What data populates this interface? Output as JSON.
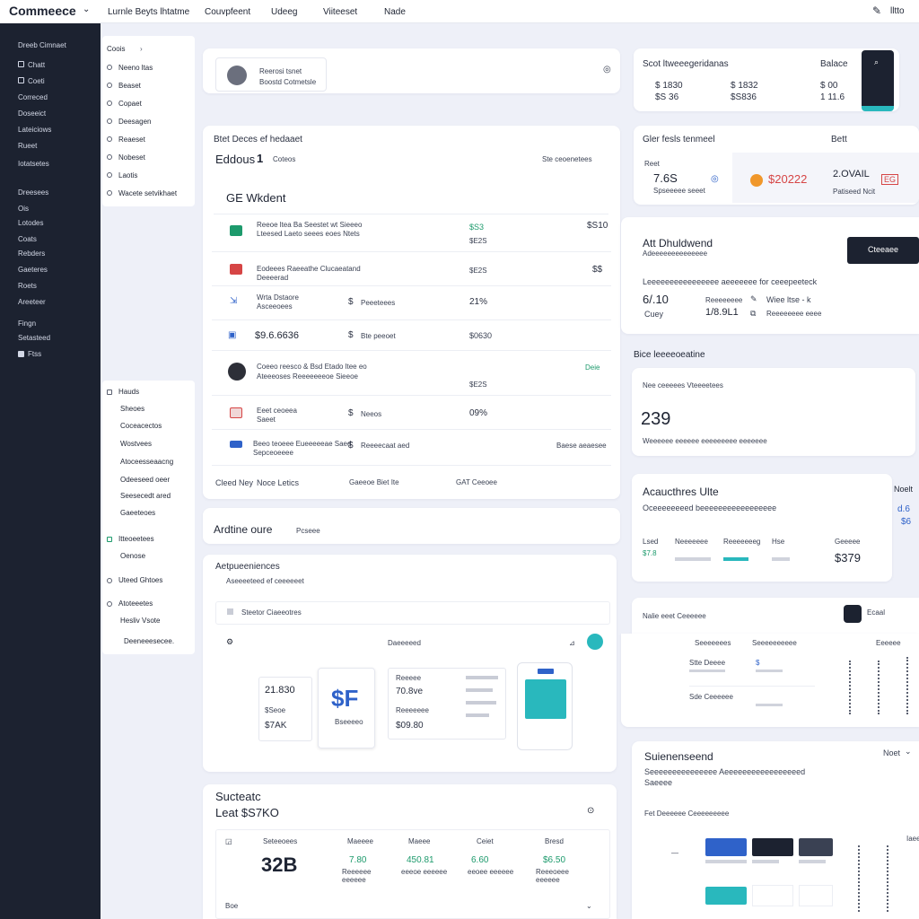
{
  "topbar": {
    "brand": "Commeece",
    "nav": [
      "Lurnle Beyts lhtatme",
      "Couvpfeent",
      "Udeeg",
      "Viiteeset",
      "Nade"
    ],
    "right_label": "lltto"
  },
  "sidebar": {
    "heading": "Dreeb Cimnaet",
    "group1": [
      "Chatt",
      "Coeti",
      "Correced",
      "Doseeict",
      "Lateiciows",
      "Rueet",
      "Iotatsetes"
    ],
    "group2": [
      "Dreesees",
      "Ois",
      "Lotodes",
      "Coats",
      "Rebders",
      "Gaeteres",
      "Roets",
      "Areeteer",
      "Fingn",
      "Setasteed",
      "Ftss"
    ]
  },
  "secondary_nav": {
    "menu1": [
      "Coois",
      "Neeno ltas",
      "Beaset",
      "Copaet",
      "Deesagen",
      "Reaeset",
      "Nobeset",
      "Laotis",
      "Wacete setvikhaet"
    ],
    "menu2_heading": "Hauds",
    "menu2": [
      "Sheoes",
      "Coceacectos",
      "Wostvees",
      "Atoceesseaacng",
      "Odeeseed oeer",
      "Seesecedt ared",
      "Gaeeteoes"
    ],
    "menu3_heading": "Itteoeetees",
    "menu3": [
      "Oenose"
    ],
    "menu4_heading": "Uteed Ghtoes",
    "menu5_heading": "Atoteeetes",
    "menu5": [
      "Hesliv Vsote",
      "Deeneeesecee."
    ]
  },
  "profile_card": {
    "line1": "Reerosi tsnet",
    "line2": "Boostd Cotmetsle"
  },
  "orders_card": {
    "title": "Btet Deces ef hedaaet",
    "subtitle": "Eddous",
    "count": "1",
    "filter": "Coteos",
    "right_filter": "Ste ceoenetees",
    "section": "GE Wkdent",
    "rows": [
      {
        "name": "Reeoe ltea Ba Seestet wt Sieeeo",
        "sub": "Lteesed  Laeto seees eoes  Ntets",
        "mid": "",
        "value": "$S3",
        "value2": "$E2S",
        "right": "$S10"
      },
      {
        "name": "Eodeees Raeeathe Clucaeatand",
        "sub": "Deeeerad",
        "mid": "",
        "value": "",
        "value2": "$E2S",
        "right": "$$"
      },
      {
        "name": "Wrta Dstaore",
        "sub": "Asceeoees",
        "mid": "Peeeteees",
        "value": "21%",
        "value2": "",
        "right": ""
      },
      {
        "name": "$9.6.6636",
        "sub": "",
        "mid": "Bte peeoet",
        "value": "$0630",
        "value2": "",
        "right": ""
      },
      {
        "name": "Coeeo reesco & Bsd Etado ltee eo",
        "sub": "Ateeeoses  Reeeeeeeoe  Sieeoe",
        "mid": "",
        "value": "",
        "value2": "$E2S",
        "right": "Deie"
      },
      {
        "name": "Eeet ceoeea",
        "sub": "Saeet",
        "mid": "Neeos",
        "value": "09%",
        "value2": "",
        "right": ""
      },
      {
        "name": "Beeo teoeee Eueeeeeae Saed",
        "sub": "Sepceoeeee",
        "mid": "Reeeecaat aed",
        "value": "",
        "value2": "",
        "right": "Baese aeaesee"
      }
    ],
    "footer_left": "Cleed Ney",
    "footer_left2": "Noce Letics",
    "footer_mid": "Gaeeoe Biet Ite",
    "footer_right": "GAT Ceeoee"
  },
  "ad_bar": {
    "title": "Ardtine oure",
    "sub": "Pcseee"
  },
  "products_card": {
    "title": "Aetpueeniences",
    "sub": "Aseeeeteed ef ceeeeeet",
    "filter": "Steetor Ciaeeotres",
    "section": "Daeeeeed",
    "tile1_value": "21.830",
    "tile1_label": "$Seoe",
    "tile1_value2": "$7AK",
    "tile2_big": "$F",
    "tile2_label": "Bseeeeo",
    "tile3_value": "70.8ve",
    "tile3_head": "Reeeee",
    "tile3_value2": "$09.80",
    "tile3_label": "Reeeeeee"
  },
  "sales_card": {
    "title": "Sucteatc",
    "subtitle": "Leat $S7KO",
    "columns": [
      "Seteeoees",
      "Maeeee",
      "Maeee",
      "Ceiet",
      "Bresd"
    ],
    "big_value": "32B",
    "values": [
      "7.80",
      "450.81",
      "6.60",
      "$6.50"
    ],
    "subs": [
      "Reeeeee eeeeee",
      "eeeoe eeeeee",
      "eeoee eeeeee",
      "Reeeoeee eeeeee"
    ],
    "footer_left": "Boe"
  },
  "balance_card": {
    "title": "Scot ltweeegeridanas",
    "right_title": "Balace",
    "rows": [
      [
        "$ 1830",
        "$ 1832",
        "$ 00"
      ],
      [
        "$S 36",
        "$S836",
        "1 11.6"
      ]
    ]
  },
  "stats_card": {
    "title": "Gler fesls tenmeel",
    "right_title": "Bett",
    "k1_label": "Reet",
    "k1_value": "7.6S",
    "k1_sub": "Spseeeee seeet",
    "k2_value": "$20222",
    "k3_value": "2.OVAIL",
    "k3_sub": "Patiseed Ncit"
  },
  "dashboard_card": {
    "title": "Att Dhuldwend",
    "sub": "Adeeeeeeeeeeeeee",
    "button": "Cteeaee",
    "desc": "Leeeeeeeeeeeeeeee aeeeeeee for ceeepeeteck",
    "v1": "6/.10",
    "v1_sub": "Cuey",
    "v2_head": "Reeeeeeee",
    "v2": "1/8.9L1",
    "v3": "Wiee ltse - k",
    "v3_sub": "Reeeeeeee eeee"
  },
  "ice_card": {
    "title": "Bice leeeeoeatine",
    "sub": "Nee ceeeees Vteeeetees",
    "big": "239",
    "footer": "Weeeeee eeeeee eeeeeeeee eeeeeee"
  },
  "attributes_card": {
    "title": "Acaucthres Ulte",
    "sub": "Oceeeeeeeed beeeeeeeeeeeeeeeee",
    "cols": [
      "Lsed",
      "Neeeeeee",
      "Reeeeeeeg",
      "Hse",
      "Geeeee"
    ],
    "vals": [
      "$7.8",
      "",
      "",
      "",
      "$379"
    ],
    "right": "Noelt",
    "right_value": "d.6",
    "right_value2": "$6"
  },
  "orders_side": {
    "title": "Nalie eeet Ceeeeee",
    "badge": "Ecaal",
    "col1": "Seeeeeees",
    "col2": "Seeeeeeeeee",
    "col3": "Eeeeee",
    "row1": "Stte Deeee",
    "row2": "Sde Ceeeeee"
  },
  "suite_card": {
    "title": "Suienenseend",
    "right": "Noet",
    "sub": "Seeeeeeeeeeeeeee Aeeeeeeeeeeeeeeeeed",
    "sub2": "Saeeee",
    "section": "Fet Deeeeee Ceeeeeeeee",
    "right_small": "Iaeed"
  },
  "colors": {
    "sidebar": "#1c2230",
    "accent": "#2f62c9",
    "teal": "#29b8bd",
    "green": "#1d9a6c",
    "red": "#d64545",
    "orange": "#f0972a"
  }
}
